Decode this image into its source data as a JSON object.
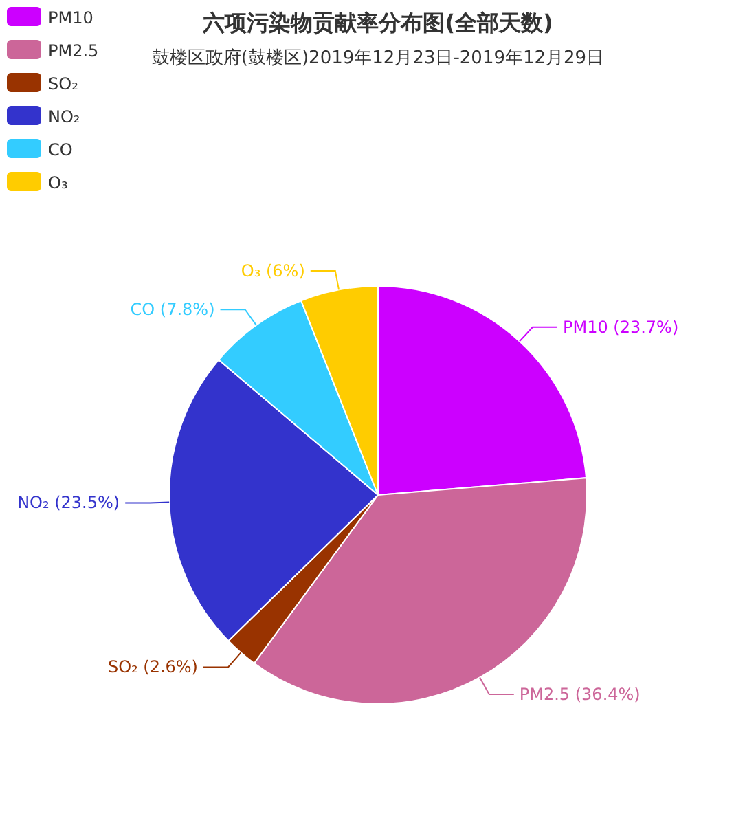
{
  "chart_data": {
    "type": "pie",
    "title": "六项污染物贡献率分布图(全部天数)",
    "subtitle": "鼓楼区政府(鼓楼区)2019年12月23日-2019年12月29日",
    "categories": [
      "PM10",
      "PM2.5",
      "SO₂",
      "NO₂",
      "CO",
      "O₃"
    ],
    "values": [
      23.7,
      36.4,
      2.6,
      23.5,
      7.8,
      6
    ],
    "colors": [
      "#cc00ff",
      "#cc6699",
      "#993300",
      "#3333cc",
      "#33ccff",
      "#ffcc00"
    ],
    "value_labels": [
      "PM10 (23.7%)",
      "PM2.5 (36.4%)",
      "SO₂ (2.6%)",
      "NO₂ (23.5%)",
      "CO (7.8%)",
      "O₃ (6%)"
    ],
    "legend": "top left"
  }
}
